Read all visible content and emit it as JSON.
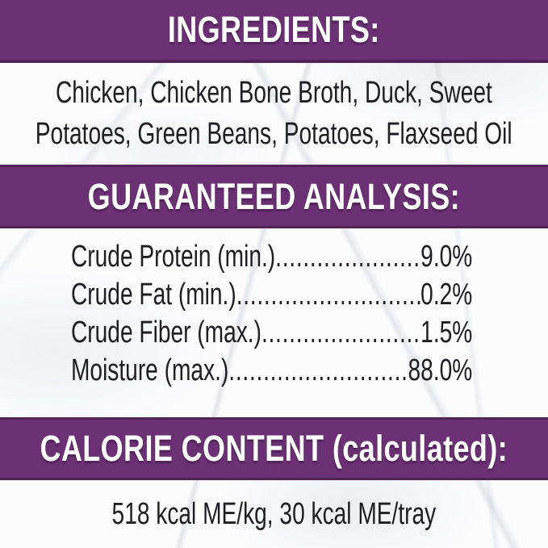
{
  "colors": {
    "banner_bg": "#6B3174",
    "banner_edge": "#512457",
    "banner_text": "#FFFFFF",
    "body_text": "#1F1F23"
  },
  "ingredients": {
    "header": "INGREDIENTS:",
    "line1": "Chicken, Chicken Bone Broth, Duck, Sweet",
    "line2": "Potatoes, Green Beans, Potatoes, Flaxseed Oil"
  },
  "analysis": {
    "header": "GUARANTEED ANALYSIS:",
    "rows": [
      {
        "label": "Crude Protein (min.)",
        "dots": "......................................................",
        "value": "9.0%"
      },
      {
        "label": "Crude Fat (min.)",
        "dots": "......................................................",
        "value": "0.2%"
      },
      {
        "label": "Crude Fiber (max.)",
        "dots": "......................................................",
        "value": "1.5%"
      },
      {
        "label": "Moisture (max.)",
        "dots": "......................................................",
        "value": "88.0%"
      }
    ]
  },
  "calorie": {
    "header": "CALORIE CONTENT (calculated):",
    "line": "518 kcal ME/kg, 30 kcal ME/tray"
  }
}
